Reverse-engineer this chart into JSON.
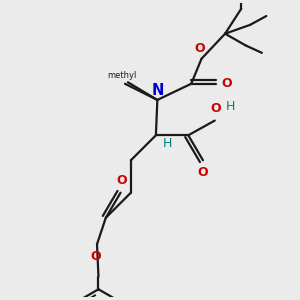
{
  "bg_color": "#ebebeb",
  "bond_color": "#1a1a1a",
  "o_color": "#cc0000",
  "n_color": "#0000cc",
  "h_color": "#008080",
  "line_width": 1.6,
  "figsize": [
    3.0,
    3.0
  ],
  "dpi": 100,
  "xlim": [
    0,
    10
  ],
  "ylim": [
    0,
    10
  ]
}
